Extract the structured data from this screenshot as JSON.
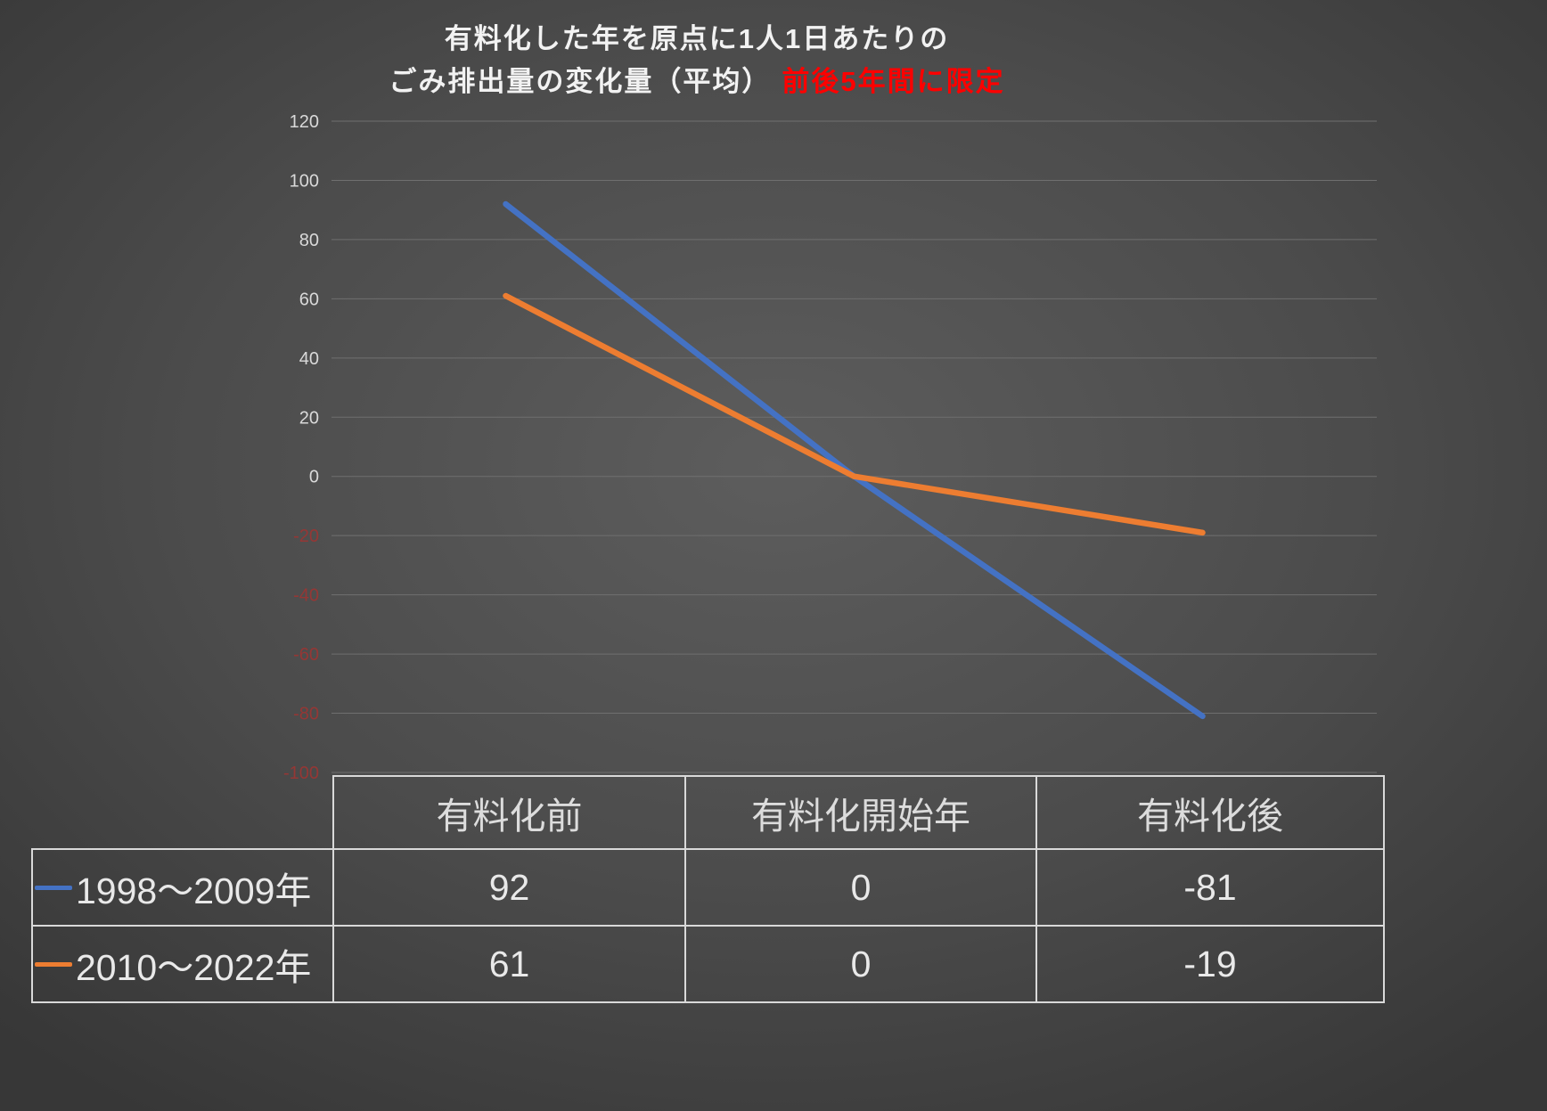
{
  "title": {
    "line1": "有料化した年を原点に1人1日あたりの",
    "line2_normal": "ごみ排出量の変化量（平均）",
    "line2_red": "前後5年間に限定"
  },
  "chart_data": {
    "type": "line",
    "categories": [
      "有料化前",
      "有料化開始年",
      "有料化後"
    ],
    "series": [
      {
        "name": "1998～2009年",
        "color": "#4472C4",
        "values": [
          92,
          0,
          -81
        ]
      },
      {
        "name": "2010～2022年",
        "color": "#ED7D31",
        "values": [
          61,
          0,
          -19
        ]
      }
    ],
    "ylim": [
      -100,
      120
    ],
    "ytick_step": 20,
    "grid": true,
    "legend_position": "table-left",
    "positive_tick_color": "#d9d9d9",
    "negative_tick_color": "#953735"
  },
  "table": {
    "columns": [
      "有料化前",
      "有料化開始年",
      "有料化後"
    ],
    "rows": [
      {
        "label": "1998～2009年",
        "values": [
          "92",
          "0",
          "-81"
        ]
      },
      {
        "label": "2010～2022年",
        "values": [
          "61",
          "0",
          "-19"
        ]
      }
    ]
  }
}
